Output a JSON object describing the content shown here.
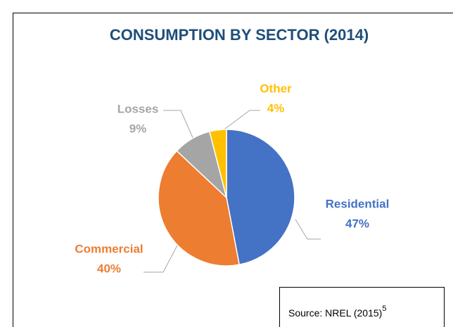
{
  "chart_data": {
    "type": "pie",
    "title": "CONSUMPTION BY SECTOR (2014)",
    "categories": [
      "Residential",
      "Commercial",
      "Losses",
      "Other"
    ],
    "values": [
      47,
      40,
      9,
      4
    ],
    "value_labels": [
      "47%",
      "40%",
      "9%",
      "4%"
    ],
    "colors": [
      "#4472c4",
      "#ed7d31",
      "#a5a5a5",
      "#ffc000"
    ],
    "source": "Source: NREL (2015)",
    "source_note": "5"
  }
}
